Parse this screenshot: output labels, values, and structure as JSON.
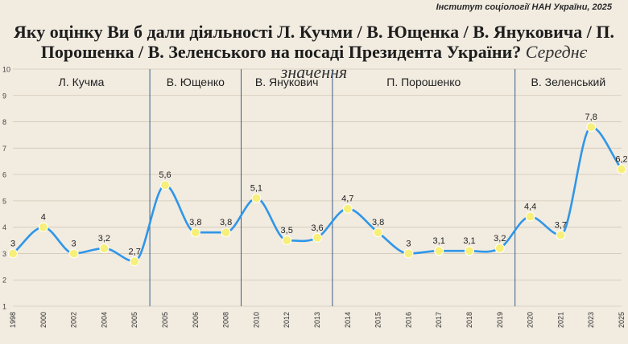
{
  "source": "Інститут соціології НАН України, 2025",
  "title": "Яку оцінку Ви б дали діяльності Л. Кучми / В. Ющенка / В. Януковича / П. Порошенка / В. Зеленського  на посаді Президента України?",
  "subtitle": "Середнє значення",
  "colors": {
    "background": "#f1ebe0",
    "line": "#2f96e8",
    "point": "#f7ef7a",
    "grid": "#d2c8b5",
    "divider": "#3a5f86",
    "text": "#222222"
  },
  "chart_data": {
    "type": "line",
    "title": "Яку оцінку Ви б дали діяльності Л. Кучми / В. Ющенка / В. Януковича / П. Порошенка / В. Зеленського  на посаді Президента України?",
    "subtitle": "Середнє значення",
    "xlabel": "",
    "ylabel": "",
    "ylim": [
      1,
      10
    ],
    "yticks": [
      "1",
      "2",
      "3",
      "4",
      "5",
      "6",
      "7",
      "8",
      "9",
      "10"
    ],
    "grid": true,
    "smooth": true,
    "x": [
      "1998",
      "2000",
      "2002",
      "2004",
      "2005",
      "2005",
      "2006",
      "2008",
      "2010",
      "2012",
      "2013",
      "2014",
      "2015",
      "2016",
      "2017",
      "2018",
      "2019",
      "2020",
      "2021",
      "2023",
      "2025"
    ],
    "values": [
      3,
      4,
      3,
      3.2,
      2.7,
      5.6,
      3.8,
      3.8,
      5.1,
      3.5,
      3.6,
      4.7,
      3.8,
      3,
      3.1,
      3.1,
      3.2,
      4.4,
      3.7,
      7.8,
      6.2
    ],
    "value_labels": [
      "3",
      "4",
      "3",
      "3,2",
      "2,7",
      "5,6",
      "3,8",
      "3,8",
      "5,1",
      "3,5",
      "3,6",
      "4,7",
      "3,8",
      "3",
      "3,1",
      "3,1",
      "3,2",
      "4,4",
      "3,7",
      "7,8",
      "6,2"
    ],
    "periods": [
      {
        "label": "Л. Кучма",
        "from_index": 0,
        "to_index": 4
      },
      {
        "label": "В. Ющенко",
        "from_index": 5,
        "to_index": 7
      },
      {
        "label": "В. Янукович",
        "from_index": 8,
        "to_index": 10
      },
      {
        "label": "П. Порошенко",
        "from_index": 11,
        "to_index": 16
      },
      {
        "label": "В. Зеленський",
        "from_index": 17,
        "to_index": 20
      }
    ]
  }
}
